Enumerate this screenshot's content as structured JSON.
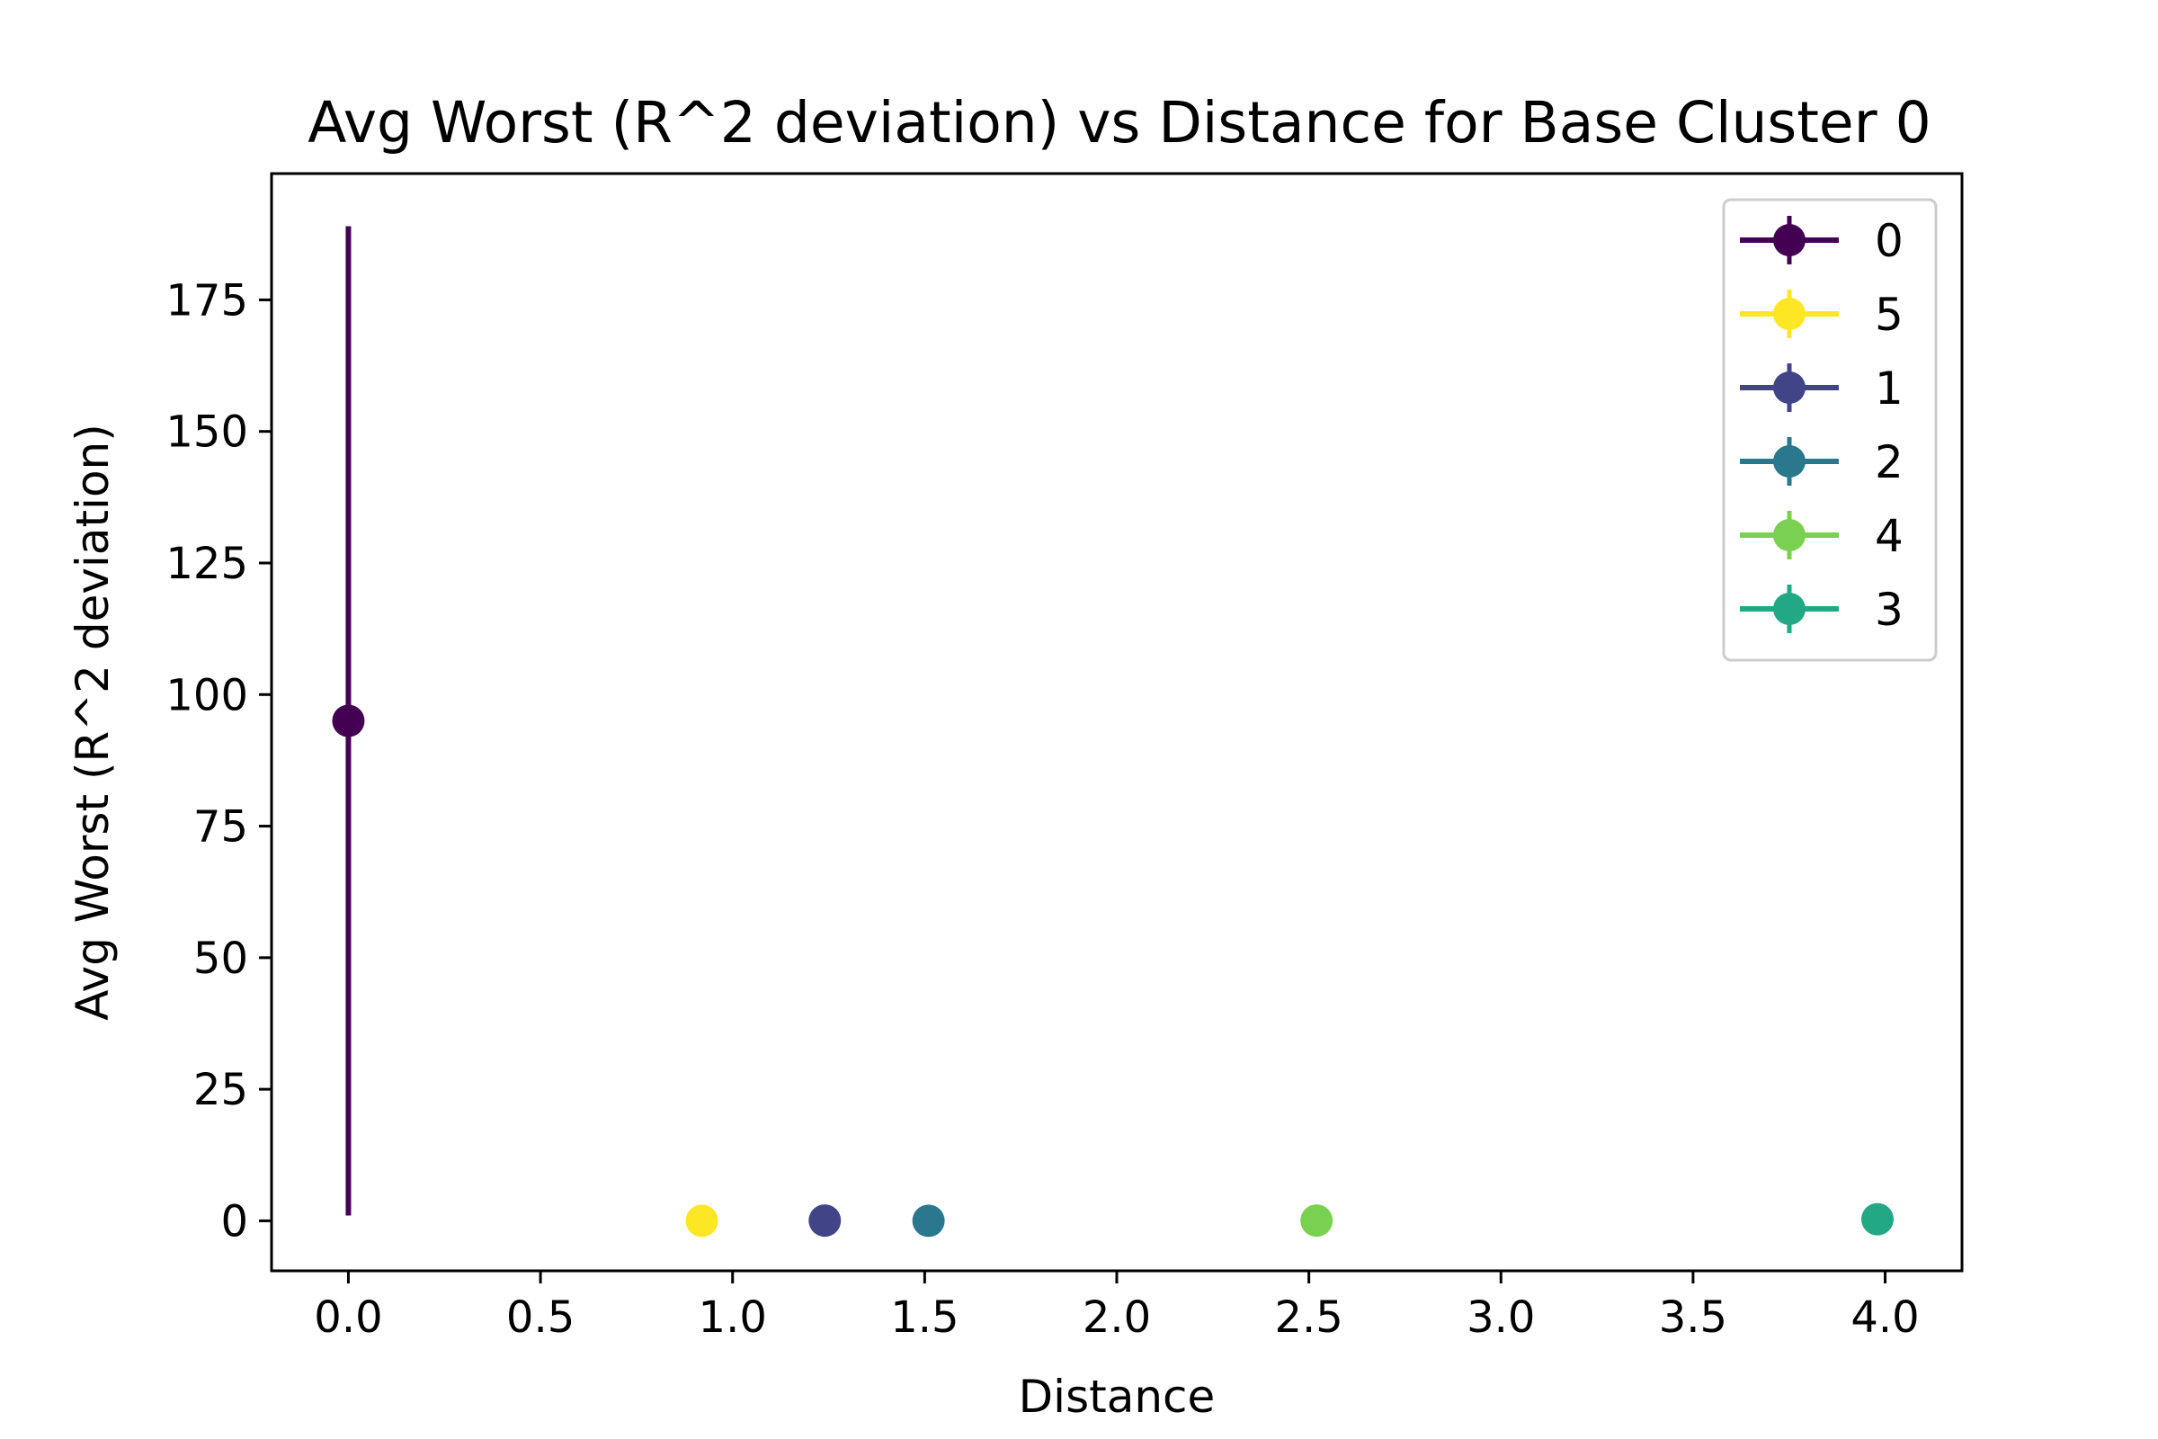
{
  "chart_data": {
    "type": "scatter",
    "title": "Avg Worst (R^2 deviation) vs Distance for Base Cluster 0",
    "xlabel": "Distance",
    "ylabel": "Avg Worst (R^2 deviation)",
    "xlim": [
      -0.2,
      4.2
    ],
    "ylim": [
      -9.5,
      199
    ],
    "xticks": [
      0.0,
      0.5,
      1.0,
      1.5,
      2.0,
      2.5,
      3.0,
      3.5,
      4.0
    ],
    "xtick_labels": [
      "0.0",
      "0.5",
      "1.0",
      "1.5",
      "2.0",
      "2.5",
      "3.0",
      "3.5",
      "4.0"
    ],
    "yticks": [
      0,
      25,
      50,
      75,
      100,
      125,
      150,
      175
    ],
    "ytick_labels": [
      "0",
      "25",
      "50",
      "75",
      "100",
      "125",
      "150",
      "175"
    ],
    "grid": false,
    "legend_position": "top-right",
    "series": [
      {
        "name": "0",
        "color": "#440154",
        "x": 0.0,
        "y": 95.0,
        "yerr": 94.0
      },
      {
        "name": "5",
        "color": "#fde725",
        "x": 0.92,
        "y": 0.0,
        "yerr": 0.0
      },
      {
        "name": "1",
        "color": "#414487",
        "x": 1.24,
        "y": 0.05,
        "yerr": 0.0
      },
      {
        "name": "2",
        "color": "#2a788e",
        "x": 1.51,
        "y": 0.0,
        "yerr": 0.0
      },
      {
        "name": "4",
        "color": "#7ad151",
        "x": 2.52,
        "y": 0.05,
        "yerr": 0.0
      },
      {
        "name": "3",
        "color": "#22a884",
        "x": 3.98,
        "y": 0.3,
        "yerr": 0.0
      }
    ]
  }
}
